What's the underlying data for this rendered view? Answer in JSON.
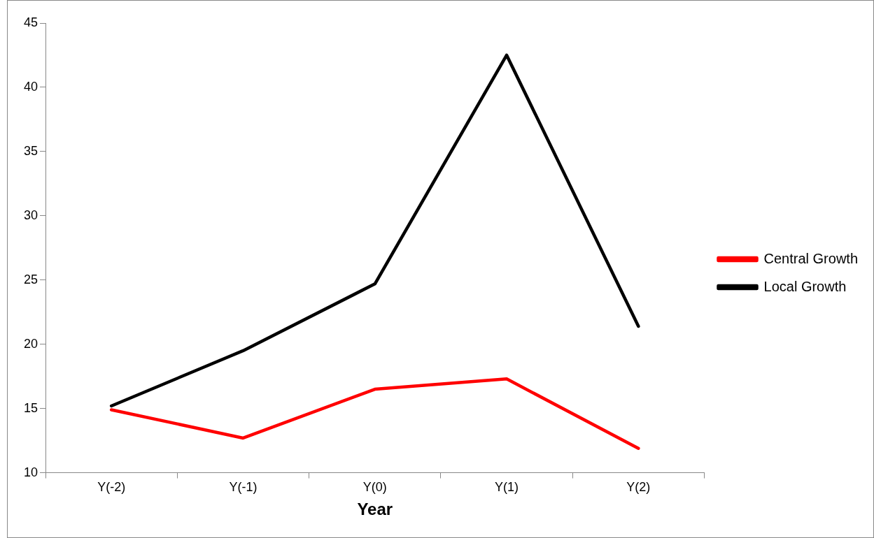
{
  "chart_data": {
    "type": "line",
    "xlabel": "Year",
    "categories": [
      "Y(-2)",
      "Y(-1)",
      "Y(0)",
      "Y(1)",
      "Y(2)"
    ],
    "series": [
      {
        "name": "Central Growth",
        "color": "#ff0000",
        "values": [
          14.9,
          12.7,
          16.5,
          17.3,
          11.9
        ]
      },
      {
        "name": "Local Growth",
        "color": "#000000",
        "values": [
          15.2,
          19.5,
          24.7,
          42.5,
          21.4
        ]
      }
    ],
    "ylim": [
      10,
      45
    ],
    "yticks": [
      10,
      15,
      20,
      25,
      30,
      35,
      40,
      45
    ],
    "grid": false,
    "legend": "right",
    "marker": "none",
    "line_style": "solid"
  }
}
